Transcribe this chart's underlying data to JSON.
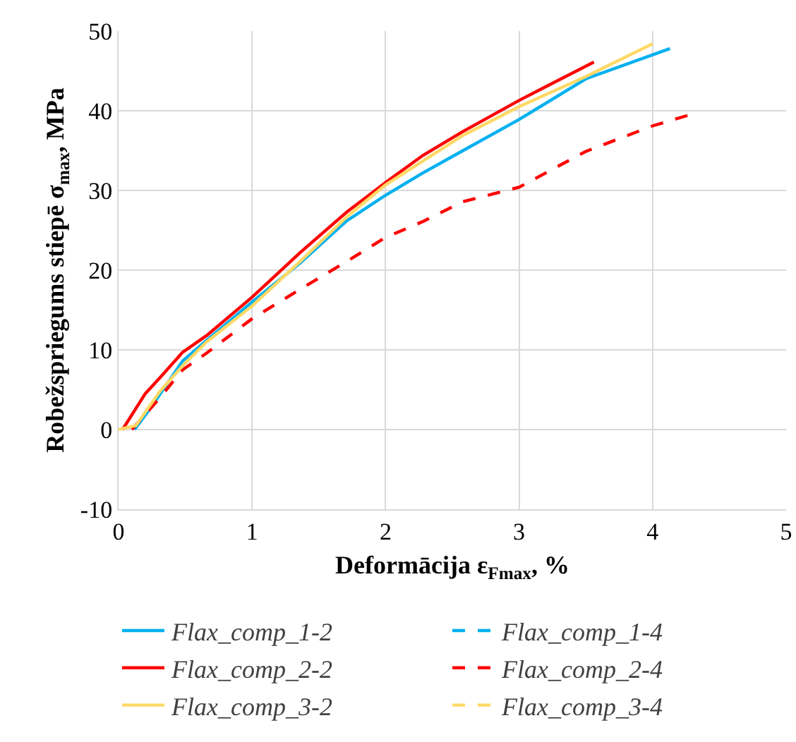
{
  "chart_data": {
    "type": "line",
    "xlabel": "Deformācija ε$_{Fmax}$, %",
    "ylabel": "Robežspriegums stiepē σ$_{max}$, MPa",
    "xlim": [
      0,
      5
    ],
    "xticks": [
      0,
      1,
      2,
      3,
      4,
      5
    ],
    "ylim": [
      -10,
      50
    ],
    "yticks": [
      -10,
      0,
      10,
      20,
      30,
      40,
      50
    ],
    "grid": true,
    "legend": "bottom",
    "marker": "none",
    "series": [
      {
        "name": "Flax_comp_1-2",
        "color": "#00b0f0",
        "line_style": "solid",
        "x": [
          0.12,
          0.24,
          0.48,
          0.66,
          1.0,
          1.36,
          1.71,
          2.0,
          2.28,
          2.58,
          3.0,
          3.5,
          4.13
        ],
        "values": [
          0,
          2.7,
          8.6,
          11.2,
          16.0,
          20.9,
          26.2,
          29.4,
          32.2,
          35.0,
          38.9,
          44.0,
          47.8
        ]
      },
      {
        "name": "Flax_comp_1-4",
        "color": "#00b0f0",
        "line_style": "dashed"
      },
      {
        "name": "Flax_comp_2-2",
        "color": "#ff0000",
        "line_style": "solid",
        "x": [
          0.03,
          0.2,
          0.31,
          0.48,
          0.66,
          1.0,
          1.36,
          1.71,
          2.0,
          2.28,
          2.58,
          3.0,
          3.56
        ],
        "values": [
          0,
          4.5,
          6.5,
          9.7,
          11.8,
          16.6,
          22.2,
          27.3,
          31.0,
          34.4,
          37.4,
          41.3,
          46.1
        ]
      },
      {
        "name": "Flax_comp_2-4",
        "color": "#ff0000",
        "line_style": "dashed",
        "x": [
          0.1,
          0.31,
          0.48,
          0.66,
          1.0,
          1.36,
          1.71,
          2.0,
          2.28,
          2.58,
          3.0,
          3.5,
          4.0,
          4.3
        ],
        "values": [
          0,
          4,
          7.5,
          9.6,
          13.9,
          17.6,
          21.1,
          24.1,
          26.1,
          28.6,
          30.4,
          34.9,
          38.1,
          39.6
        ]
      },
      {
        "name": "Flax_comp_3-2",
        "color": "#ffd966",
        "line_style": "solid",
        "x": [
          0,
          0.13,
          0.31,
          0.48,
          0.66,
          1.0,
          1.36,
          1.71,
          2.0,
          2.58,
          3.0,
          3.5,
          4.0
        ],
        "values": [
          0,
          0.5,
          4.8,
          8.0,
          11.0,
          15.5,
          21.1,
          26.7,
          30.7,
          36.9,
          40.5,
          44.3,
          48.4
        ]
      },
      {
        "name": "Flax_comp_3-4",
        "color": "#ffd966",
        "line_style": "dashed"
      }
    ]
  }
}
